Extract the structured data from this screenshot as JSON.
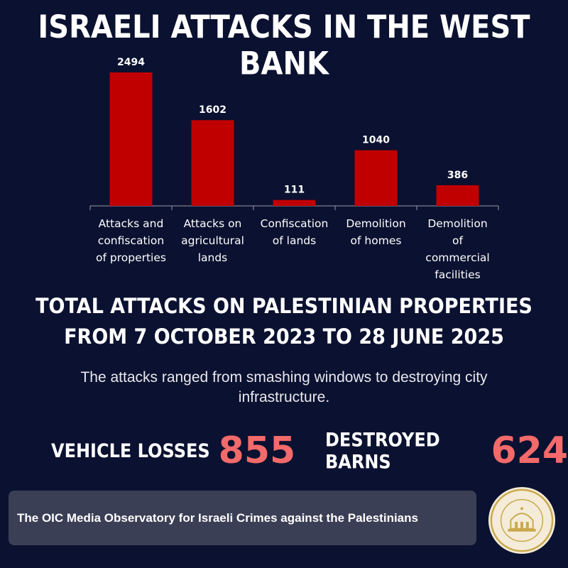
{
  "title": "ISRAELI ATTACKS IN THE WEST BANK",
  "chart_data": {
    "type": "bar",
    "categories": [
      [
        "Attacks and",
        "confiscation",
        "of properties"
      ],
      [
        "Attacks on",
        "agricultural",
        "lands"
      ],
      [
        "Confiscation",
        "of lands"
      ],
      [
        "Demolition",
        "of homes"
      ],
      [
        "Demolition",
        "of",
        "commercial",
        "facilities"
      ]
    ],
    "values": [
      2494,
      1602,
      111,
      1040,
      386
    ],
    "ylim": [
      0,
      2494
    ],
    "grid": false,
    "bar_color": "#c00000",
    "axis_color": "#9a9aa6"
  },
  "subtitle_line1": "TOTAL ATTACKS ON PALESTINIAN PROPERTIES",
  "subtitle_line2": "FROM 7 OCTOBER 2023 TO 28 JUNE 2025",
  "description": "The attacks ranged from smashing windows to destroying city infrastructure.",
  "stats": {
    "vehicle_label": "VEHICLE LOSSES",
    "vehicle_value": "855",
    "barns_label": "DESTROYED BARNS",
    "barns_value": "624"
  },
  "footer": {
    "text": "The OIC Media Observatory for Israeli Crimes against the Palestinians",
    "seal_icon": "palestine-observatory-seal-icon"
  },
  "colors": {
    "background": "#0b1130",
    "accent": "#f26a6a",
    "footer_bg": "#3b3f55",
    "seal_gold": "#c9a84c"
  }
}
